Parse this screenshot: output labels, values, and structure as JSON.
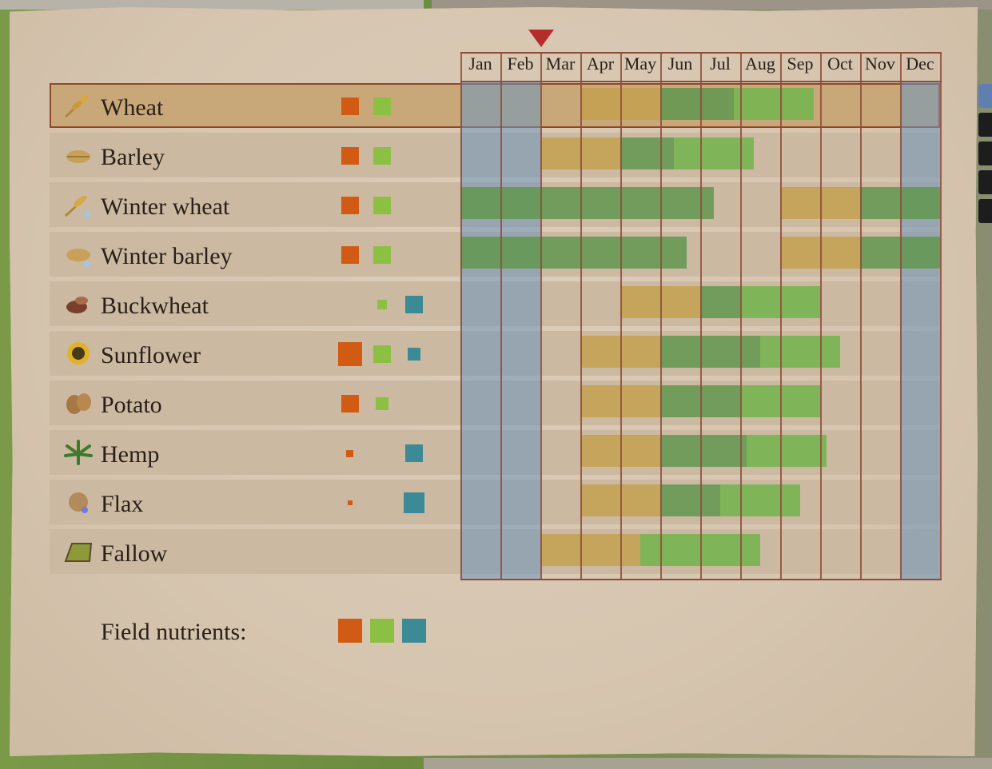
{
  "months": [
    "Jan",
    "Feb",
    "Mar",
    "Apr",
    "May",
    "Jun",
    "Jul",
    "Aug",
    "Sep",
    "Oct",
    "Nov",
    "Dec"
  ],
  "current_month": "Feb",
  "legend": {
    "label": "Field nutrients:"
  },
  "colors": {
    "nutrient_1": "#d15a14",
    "nutrient_2": "#8cc043",
    "nutrient_3": "#3d8a97"
  },
  "crops": [
    {
      "name": "Wheat",
      "icon": "wheat-icon",
      "selected": true
    },
    {
      "name": "Barley",
      "icon": "barley-icon"
    },
    {
      "name": "Winter wheat",
      "icon": "winter-wheat-icon"
    },
    {
      "name": "Winter barley",
      "icon": "winter-barley-icon"
    },
    {
      "name": "Buckwheat",
      "icon": "buckwheat-icon"
    },
    {
      "name": "Sunflower",
      "icon": "sunflower-icon"
    },
    {
      "name": "Potato",
      "icon": "potato-icon"
    },
    {
      "name": "Hemp",
      "icon": "hemp-icon"
    },
    {
      "name": "Flax",
      "icon": "flax-icon"
    },
    {
      "name": "Fallow",
      "icon": "fallow-icon"
    }
  ]
}
